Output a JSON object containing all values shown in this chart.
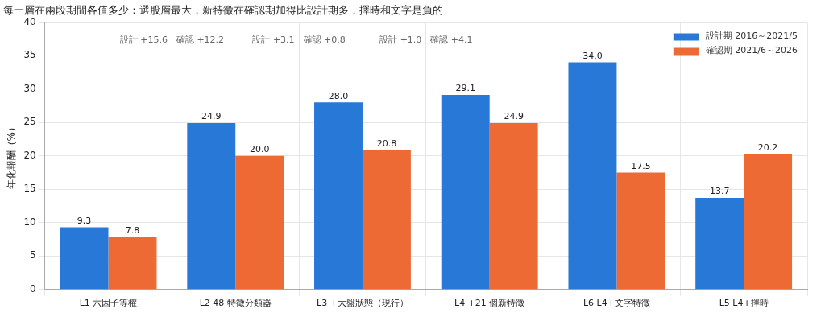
{
  "chart_data": {
    "type": "bar",
    "title": "每一層在兩段期間各值多少：選股層最大，新特徵在確認期加得比設計期多，擇時和文字是負的",
    "ylabel": "年化報酬（%）",
    "categories": [
      "L1 六因子等權",
      "L2 48 特徵分類器",
      "L3 +大盤狀態（現行）",
      "L4 +21 個新特徵",
      "L6 L4+文字特徵",
      "L5 L4+擇時"
    ],
    "series": [
      {
        "name": "設計期 2016～2021/5",
        "color": "#2878d8",
        "values": [
          9.3,
          24.9,
          28.0,
          29.1,
          34.0,
          13.7
        ],
        "value_labels": [
          "9.3",
          "24.9",
          "28.0",
          "29.1",
          "34.0",
          "13.7"
        ]
      },
      {
        "name": "確認期 2021/6～2026",
        "color": "#ee6a35",
        "values": [
          7.8,
          20.0,
          20.8,
          24.9,
          17.5,
          20.2
        ],
        "value_labels": [
          "7.8",
          "20.0",
          "20.8",
          "24.9",
          "17.5",
          "20.2"
        ]
      }
    ],
    "ylim": [
      0,
      40
    ],
    "yticks": [
      0,
      5,
      10,
      15,
      20,
      25,
      30,
      35,
      40
    ],
    "grid": true,
    "legend": "top right",
    "annotations": [
      "設計 +15.6　確認 +12.2",
      "設計 +3.1　確認 +0.8",
      "設計 +1.0　確認 +4.1"
    ]
  }
}
